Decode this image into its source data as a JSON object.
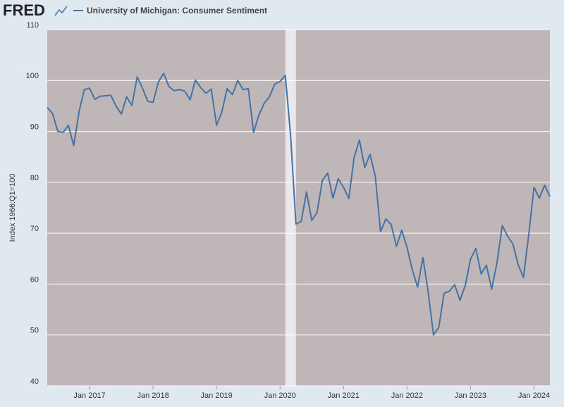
{
  "chart_data": {
    "type": "line",
    "logo": "FRED",
    "title": "University of Michigan: Consumer Sentiment",
    "ylabel": "Index 1966:Q1=100",
    "x": [
      "2016-05",
      "2016-06",
      "2016-07",
      "2016-08",
      "2016-09",
      "2016-10",
      "2016-11",
      "2016-12",
      "2017-01",
      "2017-02",
      "2017-03",
      "2017-04",
      "2017-05",
      "2017-06",
      "2017-07",
      "2017-08",
      "2017-09",
      "2017-10",
      "2017-11",
      "2017-12",
      "2018-01",
      "2018-02",
      "2018-03",
      "2018-04",
      "2018-05",
      "2018-06",
      "2018-07",
      "2018-08",
      "2018-09",
      "2018-10",
      "2018-11",
      "2018-12",
      "2019-01",
      "2019-02",
      "2019-03",
      "2019-04",
      "2019-05",
      "2019-06",
      "2019-07",
      "2019-08",
      "2019-09",
      "2019-10",
      "2019-11",
      "2019-12",
      "2020-01",
      "2020-02",
      "2020-03",
      "2020-04",
      "2020-05",
      "2020-06",
      "2020-07",
      "2020-08",
      "2020-09",
      "2020-10",
      "2020-11",
      "2020-12",
      "2021-01",
      "2021-02",
      "2021-03",
      "2021-04",
      "2021-05",
      "2021-06",
      "2021-07",
      "2021-08",
      "2021-09",
      "2021-10",
      "2021-11",
      "2021-12",
      "2022-01",
      "2022-02",
      "2022-03",
      "2022-04",
      "2022-05",
      "2022-06",
      "2022-07",
      "2022-08",
      "2022-09",
      "2022-10",
      "2022-11",
      "2022-12",
      "2023-01",
      "2023-02",
      "2023-03",
      "2023-04",
      "2023-05",
      "2023-06",
      "2023-07",
      "2023-08",
      "2023-09",
      "2023-10",
      "2023-11",
      "2023-12",
      "2024-01",
      "2024-02",
      "2024-03",
      "2024-04"
    ],
    "series": [
      {
        "name": "University of Michigan: Consumer Sentiment",
        "color": "#4572a7",
        "values": [
          94.7,
          93.5,
          90.0,
          89.8,
          91.2,
          87.2,
          93.8,
          98.2,
          98.5,
          96.3,
          96.9,
          97.0,
          97.1,
          95.0,
          93.4,
          96.8,
          95.1,
          100.7,
          98.5,
          95.9,
          95.7,
          99.7,
          101.4,
          98.8,
          98.0,
          98.2,
          97.9,
          96.2,
          100.1,
          98.6,
          97.5,
          98.3,
          91.2,
          93.8,
          98.4,
          97.2,
          100.0,
          98.2,
          98.4,
          89.8,
          93.2,
          95.5,
          96.8,
          99.3,
          99.8,
          101.0,
          89.1,
          71.8,
          72.3,
          78.1,
          72.5,
          74.1,
          80.4,
          81.8,
          76.9,
          80.7,
          79.0,
          76.8,
          84.9,
          88.3,
          82.9,
          85.5,
          81.2,
          70.3,
          72.8,
          71.7,
          67.4,
          70.6,
          67.2,
          62.8,
          59.4,
          65.2,
          58.4,
          50.0,
          51.5,
          58.2,
          58.6,
          59.9,
          56.8,
          59.7,
          64.9,
          67.0,
          62.0,
          63.7,
          59.0,
          64.2,
          71.5,
          69.4,
          67.9,
          63.8,
          61.3,
          69.7,
          79.0,
          76.9,
          79.4,
          77.2
        ]
      }
    ],
    "xlim": [
      "2016-05",
      "2024-04"
    ],
    "xticks": [
      {
        "value": "2017-01",
        "label": "Jan 2017"
      },
      {
        "value": "2018-01",
        "label": "Jan 2018"
      },
      {
        "value": "2019-01",
        "label": "Jan 2019"
      },
      {
        "value": "2020-01",
        "label": "Jan 2020"
      },
      {
        "value": "2021-01",
        "label": "Jan 2021"
      },
      {
        "value": "2022-01",
        "label": "Jan 2022"
      },
      {
        "value": "2023-01",
        "label": "Jan 2023"
      },
      {
        "value": "2024-01",
        "label": "Jan 2024"
      }
    ],
    "ylim": [
      40,
      110
    ],
    "yticks": [
      40,
      50,
      60,
      70,
      80,
      90,
      100,
      110
    ],
    "grid": true,
    "shaded_periods": [
      {
        "start": "2020-02",
        "end": "2020-04"
      }
    ]
  }
}
